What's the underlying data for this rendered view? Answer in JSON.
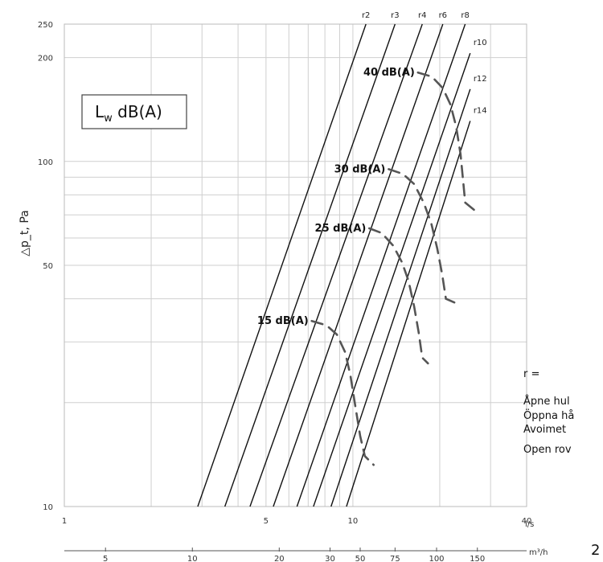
{
  "chart_data": {
    "type": "line",
    "x_scale": "log",
    "y_scale": "log",
    "xlim": [
      1,
      40
    ],
    "ylim": [
      10,
      250
    ],
    "grid": true,
    "ylabel": "△p_t, Pa",
    "x_unit_primary": "l/s",
    "x_unit_secondary": "m³/h",
    "x_ticks_primary": [
      {
        "v": 1,
        "label": "1"
      },
      {
        "v": 5,
        "label": "5"
      },
      {
        "v": 10,
        "label": "10"
      },
      {
        "v": 40,
        "label": "40"
      }
    ],
    "x_ticks_secondary": [
      {
        "v": 1.389,
        "label": "5"
      },
      {
        "v": 2.778,
        "label": "10"
      },
      {
        "v": 5.556,
        "label": "20"
      },
      {
        "v": 8.333,
        "label": "30"
      },
      {
        "v": 10.6,
        "label": "50"
      },
      {
        "v": 14.0,
        "label": "75"
      },
      {
        "v": 19.5,
        "label": "100"
      },
      {
        "v": 27.0,
        "label": "150"
      }
    ],
    "y_ticks": [
      {
        "v": 10,
        "label": "10"
      },
      {
        "v": 50,
        "label": "50"
      },
      {
        "v": 100,
        "label": "100"
      },
      {
        "v": 200,
        "label": "200"
      },
      {
        "v": 250,
        "label": "250"
      }
    ],
    "legend_box": {
      "main": "L",
      "sub": "w",
      "rest": " dB(A)"
    },
    "series": [
      {
        "name": "r2",
        "points": [
          [
            2.9,
            10
          ],
          [
            11.1,
            250
          ]
        ]
      },
      {
        "name": "r3",
        "points": [
          [
            3.6,
            10
          ],
          [
            14.0,
            250
          ]
        ]
      },
      {
        "name": "r4",
        "points": [
          [
            4.4,
            10
          ],
          [
            17.4,
            250
          ]
        ]
      },
      {
        "name": "r6",
        "points": [
          [
            5.3,
            10
          ],
          [
            20.5,
            250
          ]
        ]
      },
      {
        "name": "r8",
        "points": [
          [
            6.4,
            10
          ],
          [
            24.5,
            250
          ]
        ]
      },
      {
        "name": "r10",
        "points": [
          [
            7.3,
            10
          ],
          [
            25.5,
            206
          ]
        ]
      },
      {
        "name": "r12",
        "points": [
          [
            8.4,
            10
          ],
          [
            25.5,
            162
          ]
        ]
      },
      {
        "name": "r14",
        "points": [
          [
            9.5,
            10
          ],
          [
            25.5,
            131
          ]
        ]
      }
    ],
    "iso_lines": [
      {
        "label": "15 dB(A)",
        "points": [
          [
            7.2,
            34.5
          ],
          [
            8.1,
            33.5
          ],
          [
            8.8,
            31.5
          ],
          [
            9.4,
            28
          ],
          [
            9.8,
            24
          ],
          [
            10.2,
            19.5
          ],
          [
            10.6,
            16
          ],
          [
            11.0,
            14
          ],
          [
            11.8,
            13.2
          ]
        ]
      },
      {
        "label": "25 dB(A)",
        "points": [
          [
            11.4,
            64
          ],
          [
            12.6,
            62
          ],
          [
            13.8,
            57
          ],
          [
            14.8,
            51
          ],
          [
            15.6,
            45
          ],
          [
            16.3,
            38
          ],
          [
            16.9,
            32
          ],
          [
            17.4,
            27
          ],
          [
            18.2,
            26
          ]
        ]
      },
      {
        "label": "30 dB(A)",
        "points": [
          [
            13.3,
            95
          ],
          [
            14.9,
            92
          ],
          [
            16.3,
            86
          ],
          [
            17.6,
            76
          ],
          [
            18.7,
            66
          ],
          [
            19.6,
            56
          ],
          [
            20.4,
            47
          ],
          [
            21.0,
            40
          ],
          [
            22.5,
            39
          ]
        ]
      },
      {
        "label": "40 dB(A)",
        "points": [
          [
            16.8,
            181
          ],
          [
            18.8,
            176
          ],
          [
            20.5,
            163
          ],
          [
            21.8,
            146
          ],
          [
            22.8,
            126
          ],
          [
            23.6,
            105
          ],
          [
            24.1,
            88
          ],
          [
            24.5,
            76
          ],
          [
            26.5,
            72
          ]
        ]
      }
    ]
  },
  "notes": {
    "r_eq": "r =",
    "line1": "Åpne hul",
    "line2": "Öppna hå",
    "line3": "Avoimet",
    "line4": "Open rov"
  },
  "page_number": "2"
}
